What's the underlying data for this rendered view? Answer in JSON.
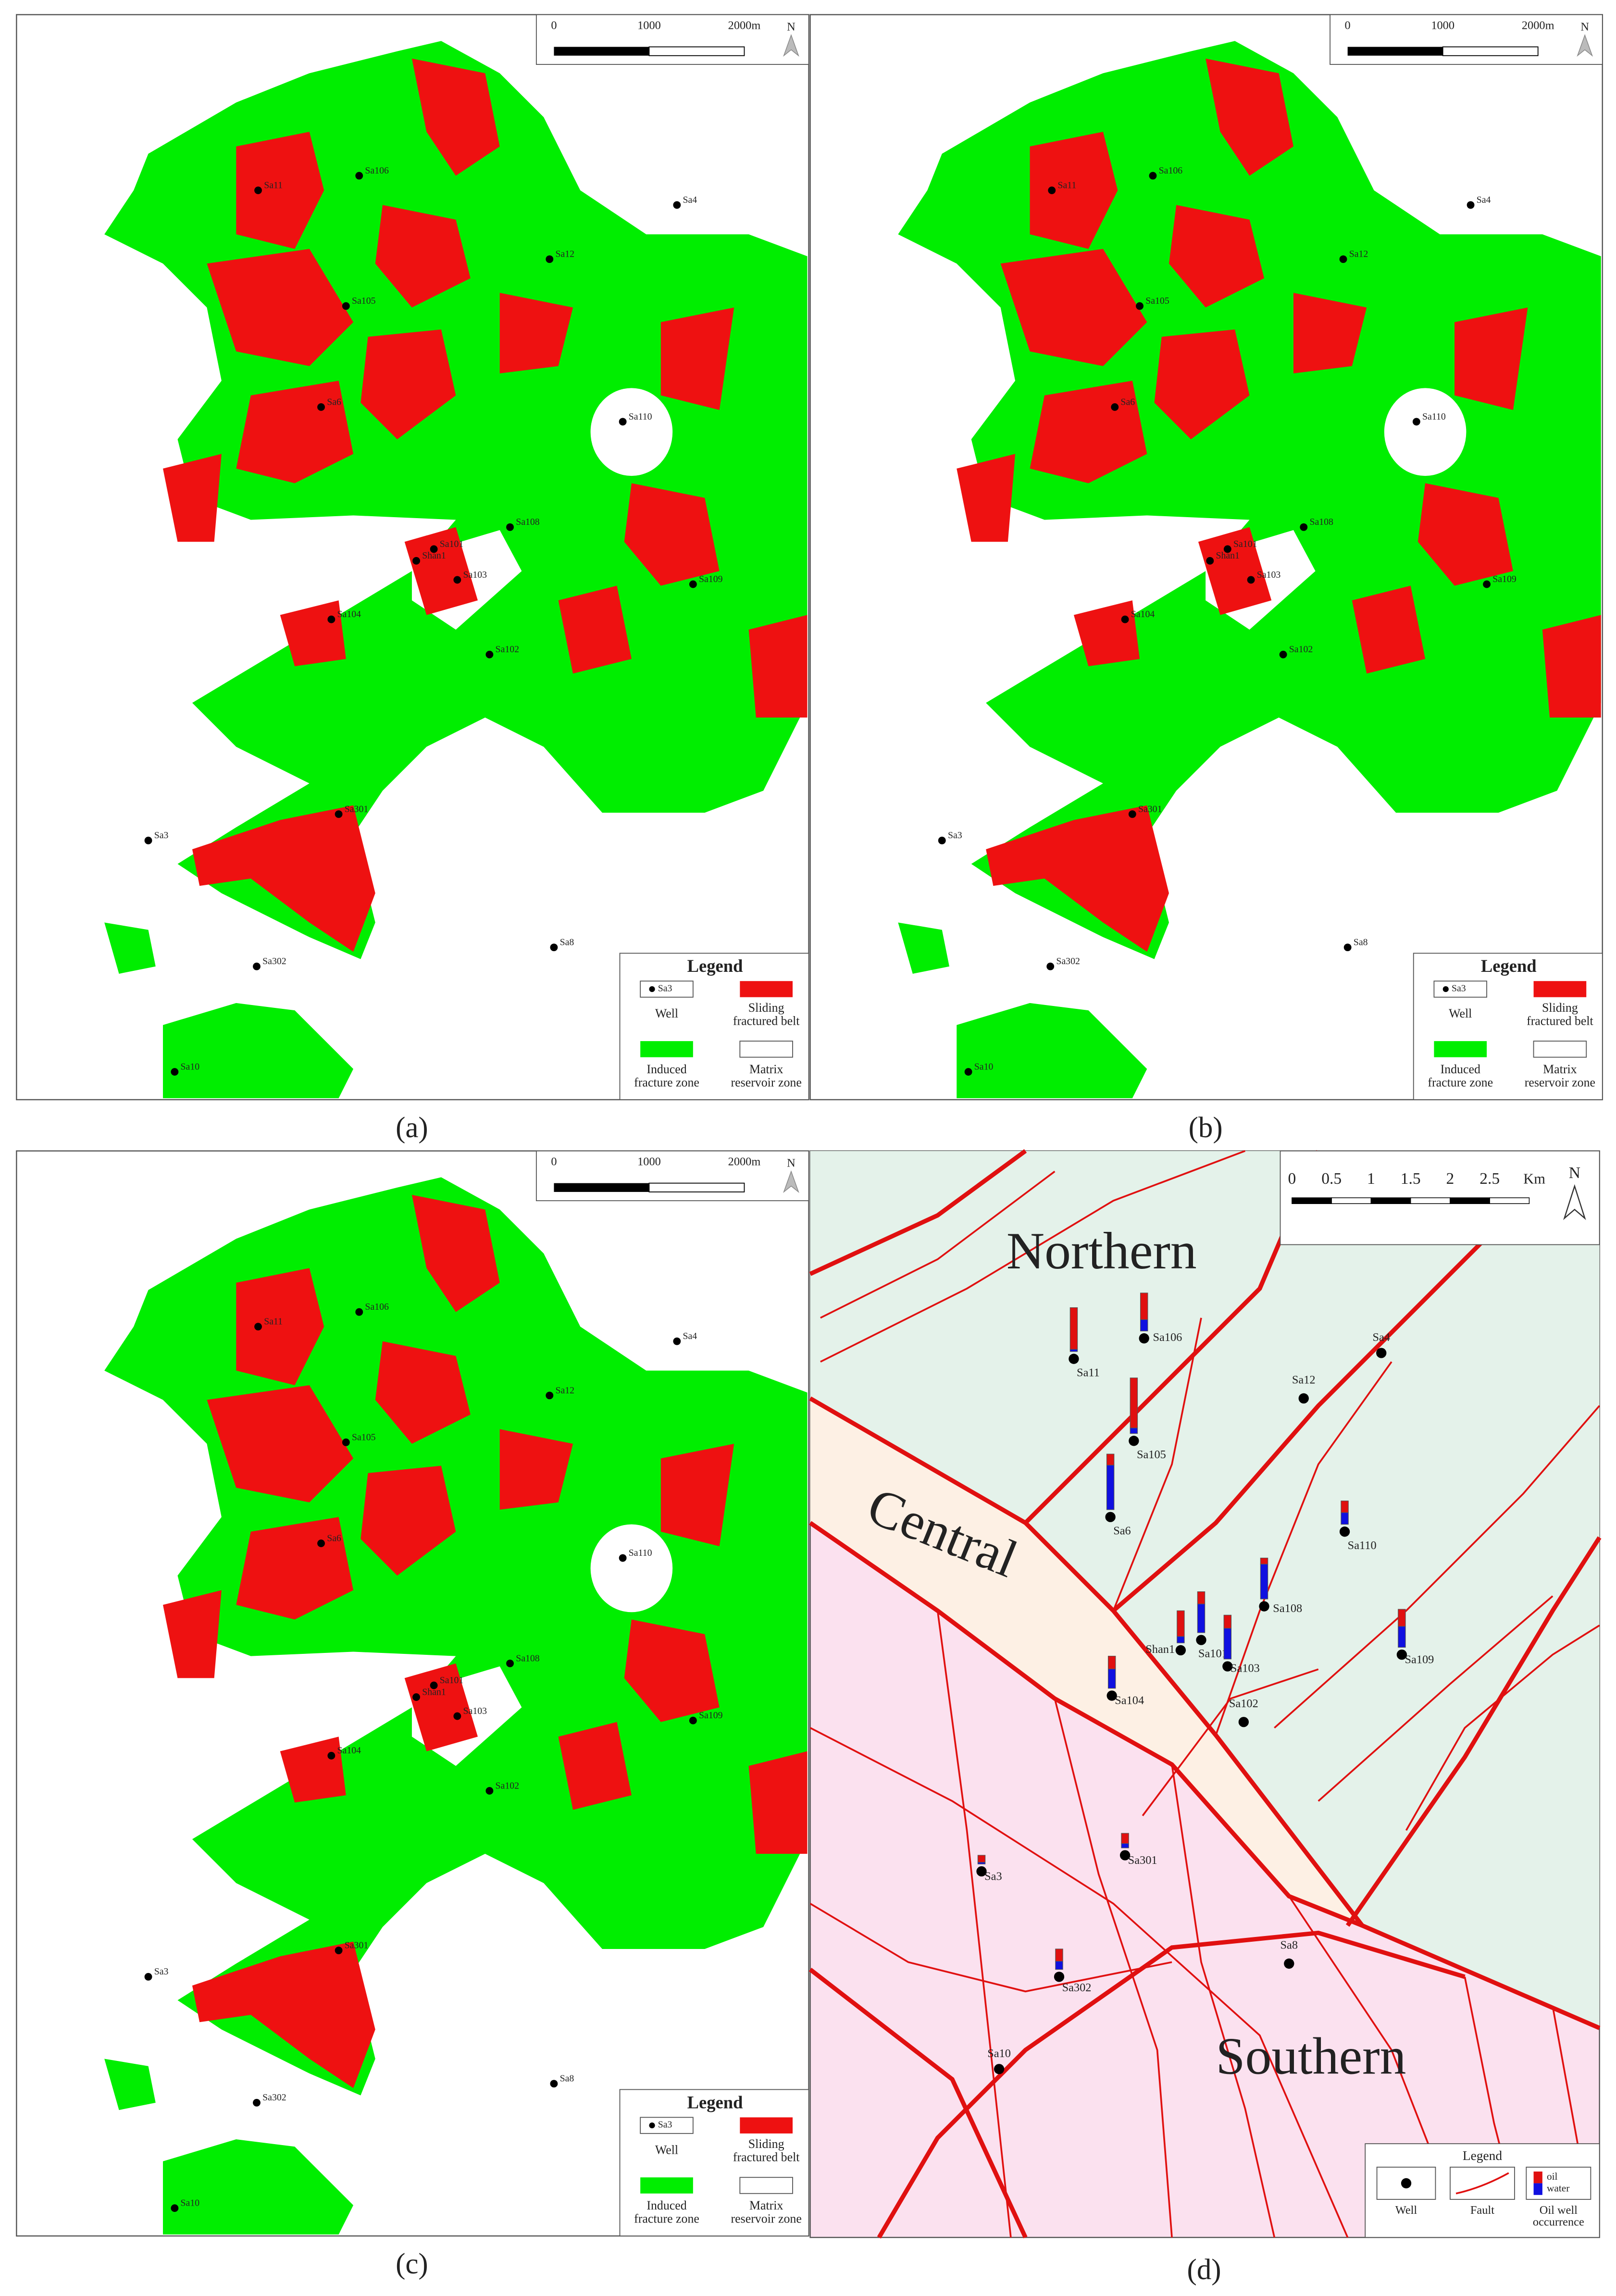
{
  "panels": [
    {
      "label": "(a)",
      "scale": [
        "0",
        "1000",
        "2000m"
      ],
      "north": "N",
      "wells": [
        "Sa11",
        "Sa106",
        "Sa4",
        "Sa12",
        "Sa105",
        "Sa6",
        "Sa110",
        "Sa108",
        "Sa101",
        "Shan1",
        "Sa103",
        "Sa109",
        "Sa104",
        "Sa102",
        "Sa301",
        "Sa3",
        "Sa8",
        "Sa302",
        "Sa10"
      ],
      "legend": {
        "title": "Legend",
        "sample_well": "Sa3",
        "items": [
          [
            "Well"
          ],
          [
            "Sliding",
            "fractured belt"
          ],
          [
            "Induced",
            "fracture zone"
          ],
          [
            "Matrix",
            "reservoir zone"
          ]
        ]
      }
    },
    {
      "label": "(b)",
      "scale": [
        "0",
        "1000",
        "2000m"
      ],
      "north": "N",
      "wells": [
        "Sa11",
        "Sa106",
        "Sa4",
        "Sa12",
        "Sa105",
        "Sa6",
        "Sa110",
        "Sa108",
        "Sa101",
        "Shan1",
        "Sa103",
        "Sa109",
        "Sa104",
        "Sa102",
        "Sa301",
        "Sa3",
        "Sa8",
        "Sa302",
        "Sa10"
      ],
      "legend": {
        "title": "Legend",
        "sample_well": "Sa3",
        "items": [
          [
            "Well"
          ],
          [
            "Sliding",
            "fractured belt"
          ],
          [
            "Induced",
            "fracture zone"
          ],
          [
            "Matrix",
            "reservoir zone"
          ]
        ]
      }
    },
    {
      "label": "(c)",
      "scale": [
        "0",
        "1000",
        "2000m"
      ],
      "north": "N",
      "wells": [
        "Sa11",
        "Sa106",
        "Sa4",
        "Sa12",
        "Sa105",
        "Sa6",
        "Sa110",
        "Sa108",
        "Sa101",
        "Shan1",
        "Sa103",
        "Sa109",
        "Sa104",
        "Sa102",
        "Sa301",
        "Sa3",
        "Sa8",
        "Sa302",
        "Sa10"
      ],
      "legend": {
        "title": "Legend",
        "sample_well": "Sa3",
        "items": [
          [
            "Well"
          ],
          [
            "Sliding",
            "fractured belt"
          ],
          [
            "Induced",
            "fracture zone"
          ],
          [
            "Matrix",
            "reservoir zone"
          ]
        ]
      }
    }
  ],
  "panel_d": {
    "label": "(d)",
    "scale": [
      "0",
      "0.5",
      "1",
      "1.5",
      "2",
      "2.5"
    ],
    "scale_unit": "Km",
    "north": "N",
    "regions": [
      "Northern",
      "Central",
      "Southern"
    ],
    "wells": [
      "Sa11",
      "Sa106",
      "Sa4",
      "Sa12",
      "Sa105",
      "Sa6",
      "Sa110",
      "Sa108",
      "Shan1",
      "Sa101",
      "Sa103",
      "Sa109",
      "Sa104",
      "Sa102",
      "Sa3",
      "Sa301",
      "Sa302",
      "Sa8",
      "Sa10"
    ],
    "legend": {
      "title": "Legend",
      "items": [
        "Well",
        "Fault",
        [
          "Oil well",
          "occurrence"
        ]
      ],
      "oil": "oil",
      "water": "water"
    }
  }
}
